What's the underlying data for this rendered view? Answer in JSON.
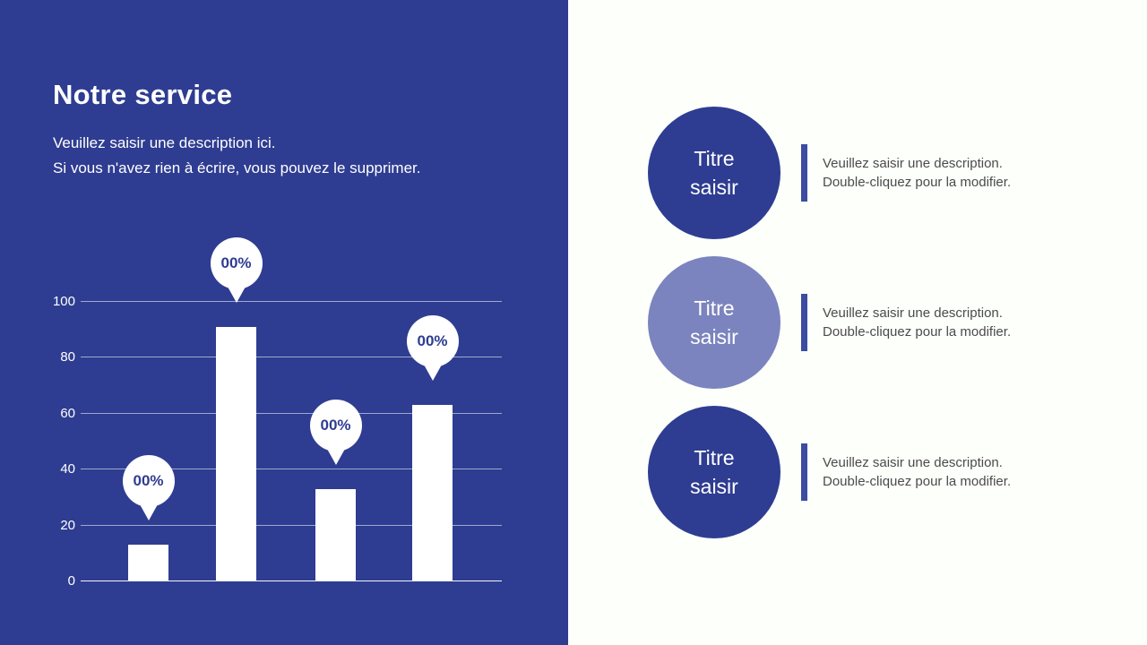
{
  "left_panel": {
    "bg_color": "#2e3d91",
    "title": "Notre service",
    "description_line1": "Veuillez saisir une description ici.",
    "description_line2": "Si vous n'avez rien à écrire, vous pouvez le supprimer."
  },
  "chart_data": {
    "type": "bar",
    "categories": [
      "",
      "",
      "",
      ""
    ],
    "values": [
      13,
      91,
      33,
      63
    ],
    "bar_labels": [
      "00%",
      "00%",
      "00%",
      "00%"
    ],
    "yticks": [
      0,
      20,
      40,
      60,
      80,
      100
    ],
    "ylim": [
      0,
      100
    ],
    "grid": true,
    "legend": false,
    "bar_color": "#ffffff",
    "balloon_text_color": "#2e3d91",
    "bar_lefts": [
      53,
      151,
      262,
      370
    ],
    "title": "",
    "xlabel": "",
    "ylabel": ""
  },
  "right_panel": {
    "divider_color": "#3c4ca0",
    "items": [
      {
        "title_line1": "Titre",
        "title_line2": "saisir",
        "circle_color": "#2e3d91",
        "desc_line1": "Veuillez saisir une description.",
        "desc_line2": "Double-cliquez pour la modifier."
      },
      {
        "title_line1": "Titre",
        "title_line2": "saisir",
        "circle_color": "#7b84be",
        "desc_line1": "Veuillez saisir une description.",
        "desc_line2": "Double-cliquez pour la modifier."
      },
      {
        "title_line1": "Titre",
        "title_line2": "saisir",
        "circle_color": "#2e3d91",
        "desc_line1": "Veuillez saisir une description.",
        "desc_line2": "Double-cliquez pour la modifier."
      }
    ]
  }
}
